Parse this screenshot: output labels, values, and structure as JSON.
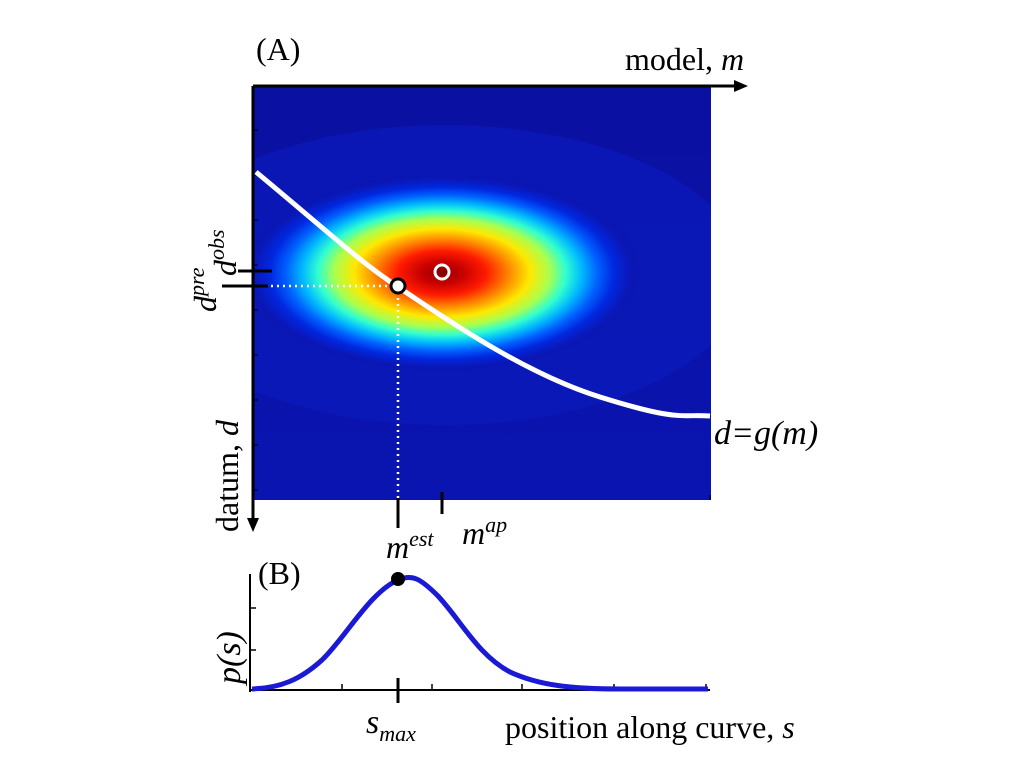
{
  "panel_a": {
    "label": "(A)",
    "x_axis_label": "model, ",
    "x_axis_var": "m",
    "y_axis_label": "datum, ",
    "y_axis_var": "d",
    "curve_label": "d=g(m)",
    "d_pre_base": "d",
    "d_pre_sup": "pre",
    "d_obs_base": "d",
    "d_obs_sup": "obs",
    "m_est_base": "m",
    "m_est_sup": "est",
    "m_ap_base": "m",
    "m_ap_sup": "ap",
    "colors": {
      "curve": "#ffffff",
      "background": "#0a12a8"
    }
  },
  "panel_b": {
    "label": "(B)",
    "y_label": "p(s)",
    "x_axis_label": "position along curve, ",
    "x_axis_var": "s",
    "s_max_base": "s",
    "s_max_sub": "max",
    "colors": {
      "curve": "#1a1ad6"
    }
  }
}
